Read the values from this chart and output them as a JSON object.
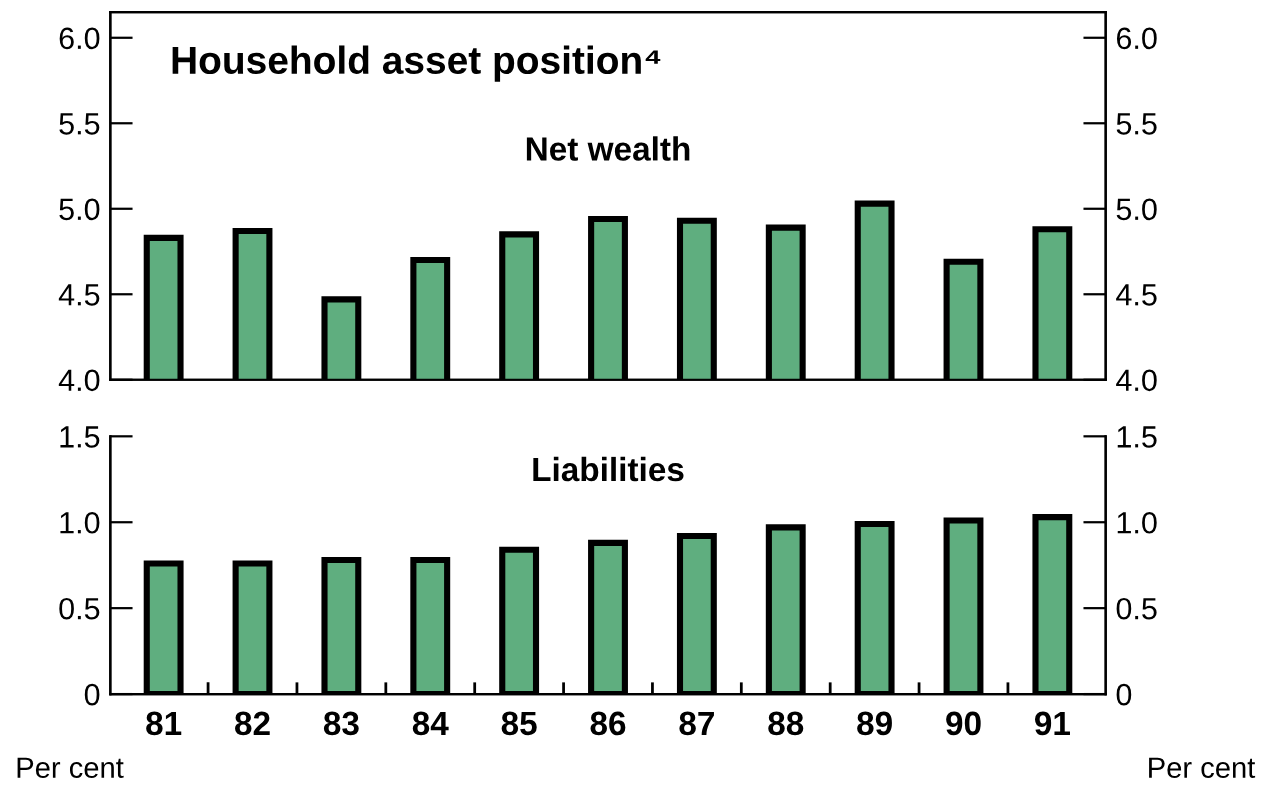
{
  "chart_data": [
    {
      "type": "bar",
      "title": "Household asset position⁴",
      "subtitle": "Net wealth",
      "categories": [
        "81",
        "82",
        "83",
        "84",
        "85",
        "86",
        "87",
        "88",
        "89",
        "90",
        "91"
      ],
      "series": [
        {
          "color": "#5fae7f",
          "values": [
            4.83,
            4.87,
            4.47,
            4.7,
            4.85,
            4.94,
            4.93,
            4.89,
            5.03,
            4.69,
            4.88
          ]
        }
      ],
      "ylim": [
        4.0,
        6.15
      ],
      "yticks": [
        {
          "value": 4.0,
          "label": "4.0"
        },
        {
          "value": 4.5,
          "label": "4.5"
        },
        {
          "value": 5.0,
          "label": "5.0"
        },
        {
          "value": 5.5,
          "label": "5.5"
        },
        {
          "value": 6.0,
          "label": "6.0"
        }
      ],
      "y2lim": [
        4.0,
        6.15
      ],
      "y2ticks": [
        {
          "value": 4.0,
          "label": "4.0"
        },
        {
          "value": 4.5,
          "label": "4.5"
        },
        {
          "value": 5.0,
          "label": "5.0"
        },
        {
          "value": 5.5,
          "label": "5.5"
        },
        {
          "value": 6.0,
          "label": "6.0"
        }
      ],
      "tick_labels": "y",
      "grid": false,
      "legend": false
    },
    {
      "type": "bar",
      "title": "Liabilities",
      "categories": [
        "81",
        "82",
        "83",
        "84",
        "85",
        "86",
        "87",
        "88",
        "89",
        "90",
        "91"
      ],
      "series": [
        {
          "color": "#5fae7f",
          "values": [
            0.76,
            0.76,
            0.78,
            0.78,
            0.84,
            0.88,
            0.92,
            0.97,
            0.99,
            1.01,
            1.03
          ]
        }
      ],
      "ylim": [
        0,
        1.5
      ],
      "yticks": [
        0,
        0.5,
        {
          "value": 1.0,
          "label": "1.0"
        },
        1.5
      ],
      "y2lim": [
        0,
        1.5
      ],
      "y2ticks": [
        0,
        0.5,
        {
          "value": 1.0,
          "label": "1.0"
        },
        1.5
      ],
      "annotations": [
        "Per cent",
        "Per cent"
      ],
      "grid": false,
      "legend": false
    }
  ]
}
